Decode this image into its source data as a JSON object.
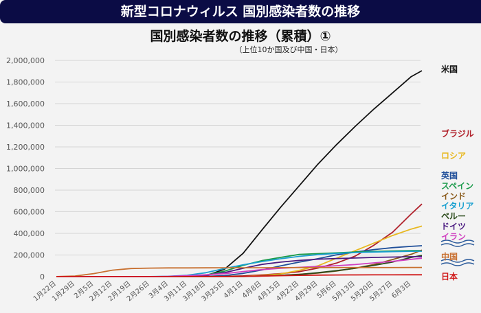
{
  "header": {
    "title": "新型コロナウィルス 国別感染者数の推移"
  },
  "chart_data": {
    "type": "line",
    "title": "国別感染者数の推移（累積）①",
    "subtitle": "（上位10か国及び中国・日本）",
    "xlabel": "",
    "ylabel": "",
    "ylim": [
      0,
      2000000
    ],
    "yticks": [
      0,
      200000,
      400000,
      600000,
      800000,
      1000000,
      1200000,
      1400000,
      1600000,
      1800000,
      2000000
    ],
    "ytick_labels": [
      "0",
      "200,000",
      "400,000",
      "600,000",
      "800,000",
      "1,000,000",
      "1,200,000",
      "1,400,000",
      "1,600,000",
      "1,800,000",
      "2,000,000"
    ],
    "grid": true,
    "legend_placement": "right (labels beside line ends)",
    "x": [
      "1/22",
      "1/29",
      "2/5",
      "2/12",
      "2/19",
      "2/26",
      "3/4",
      "3/11",
      "3/18",
      "3/25",
      "4/1",
      "4/8",
      "4/15",
      "4/22",
      "4/29",
      "5/6",
      "5/13",
      "5/20",
      "5/27",
      "6/3",
      "6/7"
    ],
    "xtick_labels": [
      "1月22日",
      "1月29日",
      "2月5日",
      "2月12日",
      "2月19日",
      "2月26日",
      "3月4日",
      "3月11日",
      "3月18日",
      "3月25日",
      "4月1日",
      "4月8日",
      "4月15日",
      "4月22日",
      "4月29日",
      "5月6日",
      "5月13日",
      "5月20日",
      "5月27日",
      "6月3日"
    ],
    "series": [
      {
        "name": "米国",
        "color": "#111111",
        "values": [
          1,
          5,
          12,
          13,
          15,
          60,
          150,
          1300,
          9000,
          68000,
          215000,
          430000,
          640000,
          840000,
          1040000,
          1220000,
          1390000,
          1550000,
          1700000,
          1850000,
          1905000
        ]
      },
      {
        "name": "ブラジル",
        "color": "#b0202a",
        "values": [
          0,
          0,
          0,
          0,
          0,
          1,
          4,
          50,
          430,
          2500,
          6800,
          16000,
          28000,
          46000,
          79000,
          125000,
          190000,
          290000,
          410000,
          580000,
          672000
        ]
      },
      {
        "name": "ロシア",
        "color": "#e8b820",
        "values": [
          0,
          0,
          0,
          2,
          2,
          2,
          3,
          20,
          150,
          660,
          2800,
          10000,
          25000,
          58000,
          100000,
          170000,
          240000,
          310000,
          380000,
          440000,
          467000
        ]
      },
      {
        "name": "英国",
        "color": "#1f4e99",
        "values": [
          0,
          0,
          2,
          8,
          9,
          13,
          85,
          460,
          2700,
          9500,
          30000,
          61000,
          99000,
          134000,
          166000,
          201000,
          227000,
          250000,
          268000,
          280000,
          286000
        ]
      },
      {
        "name": "スペイン",
        "color": "#1a9a4a",
        "values": [
          0,
          0,
          1,
          2,
          2,
          15,
          220,
          2300,
          14000,
          50000,
          104000,
          148000,
          178000,
          205000,
          213000,
          220000,
          228000,
          233000,
          237000,
          240000,
          241000
        ]
      },
      {
        "name": "インド",
        "color": "#8a5a1a",
        "values": [
          0,
          0,
          3,
          3,
          3,
          3,
          28,
          62,
          151,
          657,
          1900,
          5900,
          12400,
          21800,
          33000,
          52000,
          78000,
          112000,
          158000,
          207000,
          246000
        ]
      },
      {
        "name": "イタリア",
        "color": "#1aa0d0",
        "values": [
          0,
          0,
          2,
          3,
          3,
          650,
          3000,
          12500,
          36000,
          75000,
          110000,
          139000,
          165000,
          187000,
          203000,
          215000,
          222000,
          227000,
          231000,
          234000,
          235000
        ]
      },
      {
        "name": "ペルー",
        "color": "#2a4a1a",
        "values": [
          0,
          0,
          0,
          0,
          0,
          0,
          0,
          11,
          230,
          480,
          1400,
          5900,
          12000,
          20000,
          36000,
          55000,
          77000,
          104000,
          135000,
          178000,
          196000
        ]
      },
      {
        "name": "ドイツ",
        "color": "#4a1a80",
        "values": [
          0,
          4,
          12,
          16,
          16,
          27,
          260,
          1900,
          12000,
          37000,
          77000,
          113000,
          134000,
          150000,
          161000,
          167000,
          172000,
          178000,
          181000,
          184000,
          185000
        ]
      },
      {
        "name": "イラン",
        "color": "#d040c0",
        "values": [
          0,
          0,
          0,
          0,
          2,
          140,
          2300,
          9000,
          17000,
          27000,
          47000,
          65000,
          77000,
          86000,
          94000,
          101000,
          112000,
          127000,
          141000,
          160000,
          170000
        ]
      },
      {
        "name": "中国",
        "color": "#c87030",
        "values": [
          550,
          6000,
          28000,
          60000,
          75000,
          78500,
          80400,
          80900,
          81100,
          81600,
          82000,
          82200,
          83300,
          83900,
          83900,
          83900,
          84000,
          84000,
          84100,
          84200,
          84200
        ]
      },
      {
        "name": "日本",
        "color": "#d01818",
        "values": [
          2,
          7,
          25,
          28,
          85,
          180,
          300,
          600,
          1200,
          1300,
          2300,
          4800,
          8600,
          11800,
          13900,
          15500,
          16100,
          16400,
          16700,
          17000,
          17200
        ]
      }
    ],
    "legend_wave_color": "#2a5a9a"
  }
}
